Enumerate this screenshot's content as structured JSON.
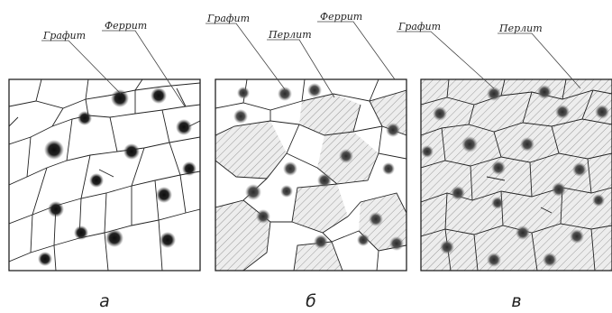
{
  "figure": {
    "panels": [
      {
        "caption": "а",
        "labels": [
          {
            "text": "Графит"
          },
          {
            "text": "Феррит"
          }
        ]
      },
      {
        "caption": "б",
        "labels": [
          {
            "text": "Графит"
          },
          {
            "text": "Перлит"
          },
          {
            "text": "Феррит"
          }
        ]
      },
      {
        "caption": "в",
        "labels": [
          {
            "text": "Графит"
          },
          {
            "text": "Перлит"
          }
        ]
      }
    ]
  }
}
